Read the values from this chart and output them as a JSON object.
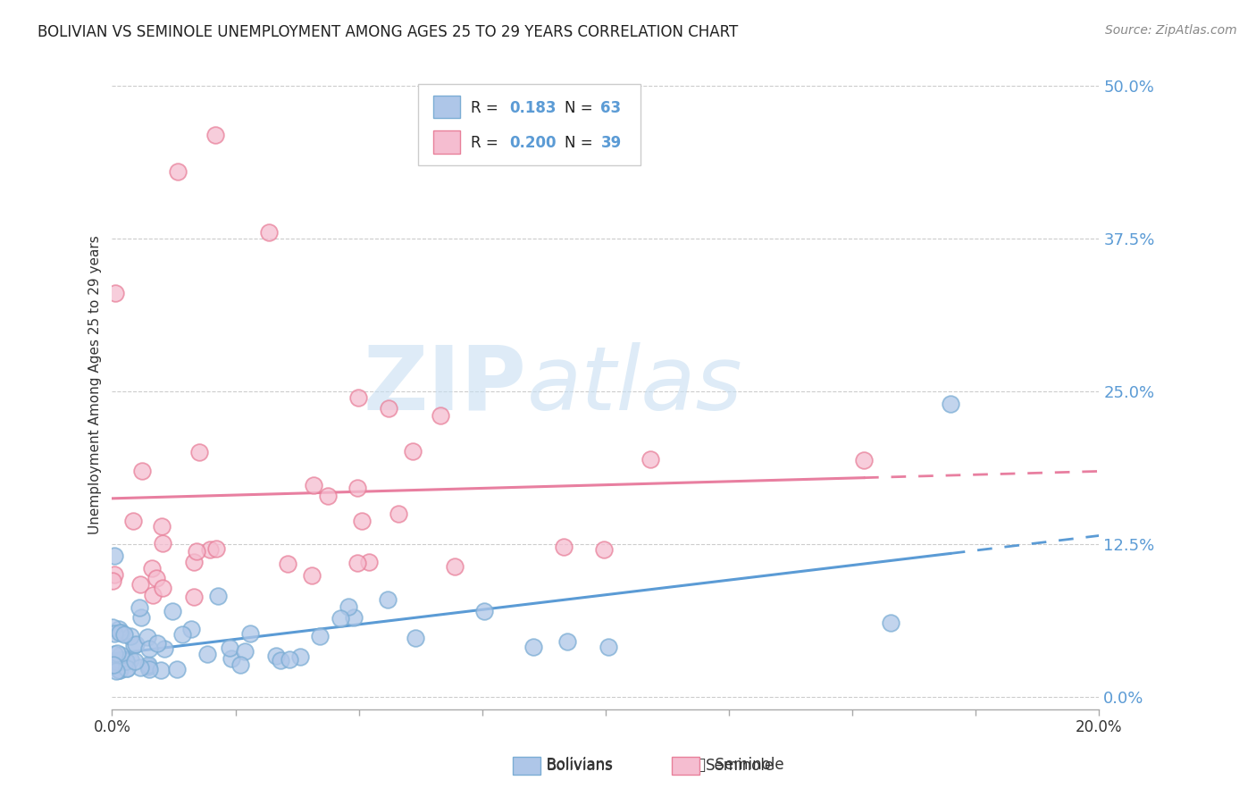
{
  "title": "BOLIVIAN VS SEMINOLE UNEMPLOYMENT AMONG AGES 25 TO 29 YEARS CORRELATION CHART",
  "source": "Source: ZipAtlas.com",
  "ylabel": "Unemployment Among Ages 25 to 29 years",
  "xlim": [
    0.0,
    0.2
  ],
  "ylim": [
    -0.01,
    0.52
  ],
  "yticks_right": [
    0.0,
    0.125,
    0.25,
    0.375,
    0.5
  ],
  "ytick_labels_right": [
    "0.0%",
    "12.5%",
    "25.0%",
    "37.5%",
    "50.0%"
  ],
  "bolivian_color": "#aec6e8",
  "bolivian_edge": "#7badd4",
  "seminole_color": "#f5bdd0",
  "seminole_edge": "#e8809a",
  "reg_line_bolivian": "#5b9bd5",
  "reg_line_seminole": "#e87fa0",
  "watermark_zip": "ZIP",
  "watermark_atlas": "atlas",
  "bolivian_seed": 42,
  "seminole_seed": 99
}
